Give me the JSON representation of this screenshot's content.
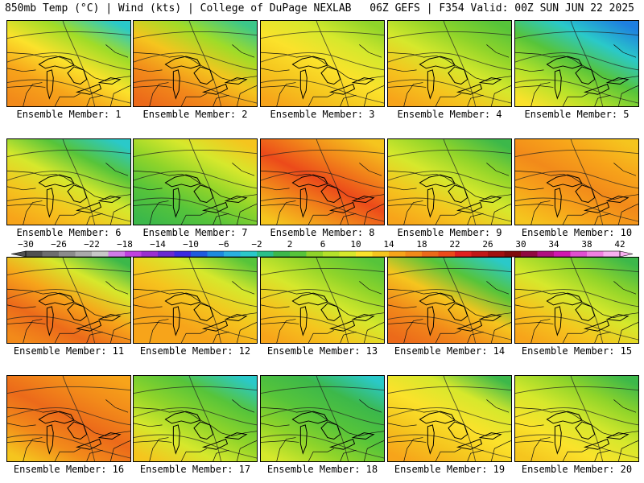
{
  "header": {
    "left": "850mb Temp (°C) | Wind (kts) | College of DuPage NEXLAB",
    "right": "06Z GEFS | F354 Valid: 00Z SUN JUN 22 2025"
  },
  "members": [
    {
      "label": "Ensemble Member: 1",
      "stops": [
        "#2ac9c9",
        "#9fdc28",
        "#fbe22b",
        "#f7a41a",
        "#f28a1a"
      ]
    },
    {
      "label": "Ensemble Member: 2",
      "stops": [
        "#3cc78a",
        "#9fdc28",
        "#f5c51e",
        "#f28a1a",
        "#ec6a1a"
      ]
    },
    {
      "label": "Ensemble Member: 3",
      "stops": [
        "#8fd42a",
        "#d6e82c",
        "#fbe22b",
        "#f5c51e",
        "#f7a41a"
      ]
    },
    {
      "label": "Ensemble Member: 4",
      "stops": [
        "#56c43a",
        "#8fd42a",
        "#d6e82c",
        "#f5c51e",
        "#f7a41a"
      ]
    },
    {
      "label": "Ensemble Member: 5",
      "stops": [
        "#1e7fe0",
        "#2ac9c9",
        "#56c43a",
        "#b4e22a",
        "#fbe22b"
      ]
    },
    {
      "label": "Ensemble Member: 6",
      "stops": [
        "#2ac9c9",
        "#56c43a",
        "#d6e82c",
        "#f5c51e",
        "#f7a41a"
      ]
    },
    {
      "label": "Ensemble Member: 7",
      "stops": [
        "#f5c51e",
        "#d6e82c",
        "#8fd42a",
        "#56c43a",
        "#3cb84a"
      ]
    },
    {
      "label": "Ensemble Member: 8",
      "stops": [
        "#f5c51e",
        "#f28a1a",
        "#ec4a1a",
        "#f28a1a",
        "#f5c51e"
      ]
    },
    {
      "label": "Ensemble Member: 9",
      "stops": [
        "#3cb84a",
        "#8fd42a",
        "#d6e82c",
        "#f5c51e",
        "#f7a41a"
      ]
    },
    {
      "label": "Ensemble Member: 10",
      "stops": [
        "#f5c51e",
        "#f7a41a",
        "#f28a1a",
        "#f7a41a",
        "#f5c51e"
      ]
    },
    {
      "label": "Ensemble Member: 11",
      "stops": [
        "#3cb84a",
        "#d6e82c",
        "#f7a41a",
        "#ec6a1a",
        "#f28a1a"
      ]
    },
    {
      "label": "Ensemble Member: 12",
      "stops": [
        "#56c43a",
        "#d6e82c",
        "#f5c51e",
        "#f7a41a",
        "#f7a41a"
      ]
    },
    {
      "label": "Ensemble Member: 13",
      "stops": [
        "#56c43a",
        "#8fd42a",
        "#d6e82c",
        "#f5c51e",
        "#f7a41a"
      ]
    },
    {
      "label": "Ensemble Member: 14",
      "stops": [
        "#2ac9c9",
        "#56c43a",
        "#f5c51e",
        "#f28a1a",
        "#ec6a1a"
      ]
    },
    {
      "label": "Ensemble Member: 15",
      "stops": [
        "#3cb84a",
        "#8fd42a",
        "#d6e82c",
        "#f5c51e",
        "#f7a41a"
      ]
    },
    {
      "label": "Ensemble Member: 16",
      "stops": [
        "#f7a41a",
        "#f28a1a",
        "#ec6a1a",
        "#f28a1a",
        "#f5c51e"
      ]
    },
    {
      "label": "Ensemble Member: 17",
      "stops": [
        "#2ac9c9",
        "#56c43a",
        "#8fd42a",
        "#d6e82c",
        "#f5c51e"
      ]
    },
    {
      "label": "Ensemble Member: 18",
      "stops": [
        "#2ac9c9",
        "#3cb84a",
        "#56c43a",
        "#8fd42a",
        "#d6e82c"
      ]
    },
    {
      "label": "Ensemble Member: 19",
      "stops": [
        "#3cb84a",
        "#d6e82c",
        "#fbe22b",
        "#f5c51e",
        "#f7a41a"
      ]
    },
    {
      "label": "Ensemble Member: 20",
      "stops": [
        "#3cb84a",
        "#8fd42a",
        "#d6e82c",
        "#fbe22b",
        "#f5c51e"
      ]
    }
  ],
  "colorbar": {
    "ticks": [
      "-30",
      "-26",
      "-22",
      "-18",
      "-14",
      "-10",
      "-6",
      "-2",
      "2",
      "6",
      "10",
      "14",
      "18",
      "22",
      "26",
      "30",
      "34",
      "38",
      "42"
    ],
    "colors": [
      "#505050",
      "#6e6e6e",
      "#8c8c8c",
      "#aaaaaa",
      "#c8c8c8",
      "#d07be8",
      "#c040e0",
      "#9a30d0",
      "#6a2ad0",
      "#3a2ae0",
      "#1e5ae0",
      "#1e8ae0",
      "#2ab0e0",
      "#2ac9c9",
      "#2abf8a",
      "#3cb84a",
      "#56c43a",
      "#8fd42a",
      "#b4e22a",
      "#d6e82c",
      "#fbe22b",
      "#f5c51e",
      "#f7a41a",
      "#f28a1a",
      "#ec6a1a",
      "#ec4a1a",
      "#e02020",
      "#c01818",
      "#a01010",
      "#800c0c",
      "#900a40",
      "#b01080",
      "#d018b0",
      "#e050d0",
      "#f080e0",
      "#f8b0f0"
    ]
  }
}
